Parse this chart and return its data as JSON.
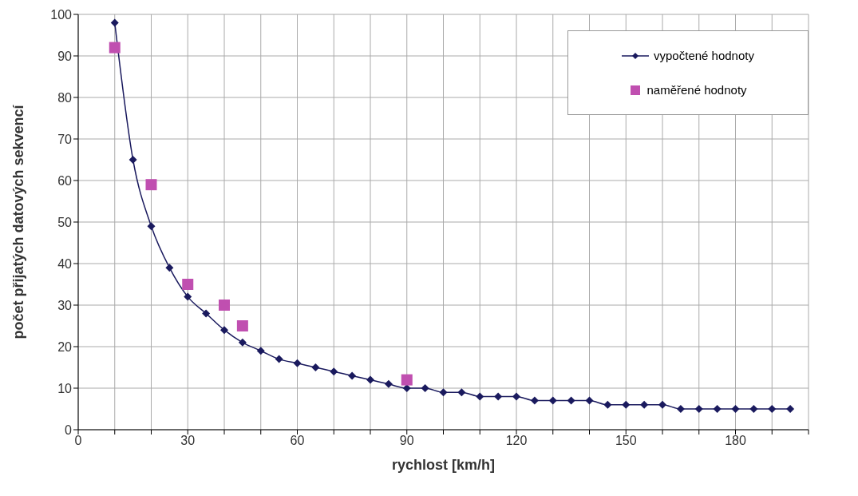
{
  "chart_data": {
    "type": "line",
    "xlabel": "rychlost [km/h]",
    "ylabel": "počet přijatých datových sekvencí",
    "xlim": [
      0,
      200
    ],
    "ylim": [
      0,
      100
    ],
    "xticks": [
      0,
      {
        "value": 10,
        "label": null
      },
      {
        "value": 20,
        "label": null
      },
      30,
      {
        "value": 40,
        "label": null
      },
      {
        "value": 50,
        "label": null
      },
      60,
      {
        "value": 70,
        "label": null
      },
      {
        "value": 80,
        "label": null
      },
      90,
      {
        "value": 100,
        "label": null
      },
      {
        "value": 110,
        "label": null
      },
      120,
      {
        "value": 130,
        "label": null
      },
      {
        "value": 140,
        "label": null
      },
      150,
      {
        "value": 160,
        "label": null
      },
      {
        "value": 170,
        "label": null
      },
      180,
      {
        "value": 190,
        "label": null
      },
      {
        "value": 200,
        "label": null
      }
    ],
    "yticks": [
      0,
      10,
      20,
      30,
      40,
      50,
      60,
      70,
      80,
      90,
      100
    ],
    "grid": true,
    "legend": "top right",
    "series": [
      {
        "name": "vypočtené hodnoty",
        "color": "#1a1a5e",
        "marker": "diamond",
        "line_style": "solid",
        "x": [
          10,
          15,
          20,
          25,
          30,
          35,
          40,
          45,
          50,
          55,
          60,
          65,
          70,
          75,
          80,
          85,
          90,
          95,
          100,
          105,
          110,
          115,
          120,
          125,
          130,
          135,
          140,
          145,
          150,
          155,
          160,
          165,
          170,
          175,
          180,
          185,
          190,
          195
        ],
        "values": [
          98,
          65,
          49,
          39,
          32,
          28,
          24,
          21,
          19,
          17,
          16,
          15,
          14,
          13,
          12,
          11,
          10,
          10,
          9,
          9,
          8,
          8,
          8,
          7,
          7,
          7,
          7,
          6,
          6,
          6,
          6,
          5,
          5,
          5,
          5,
          5,
          5,
          5
        ]
      },
      {
        "name": "naměřené hodnoty",
        "type": "scatter",
        "color": "#c04fb0",
        "marker": "square",
        "x": [
          10,
          20,
          30,
          40,
          45,
          90
        ],
        "values": [
          92,
          59,
          35,
          30,
          25,
          12
        ]
      }
    ]
  }
}
